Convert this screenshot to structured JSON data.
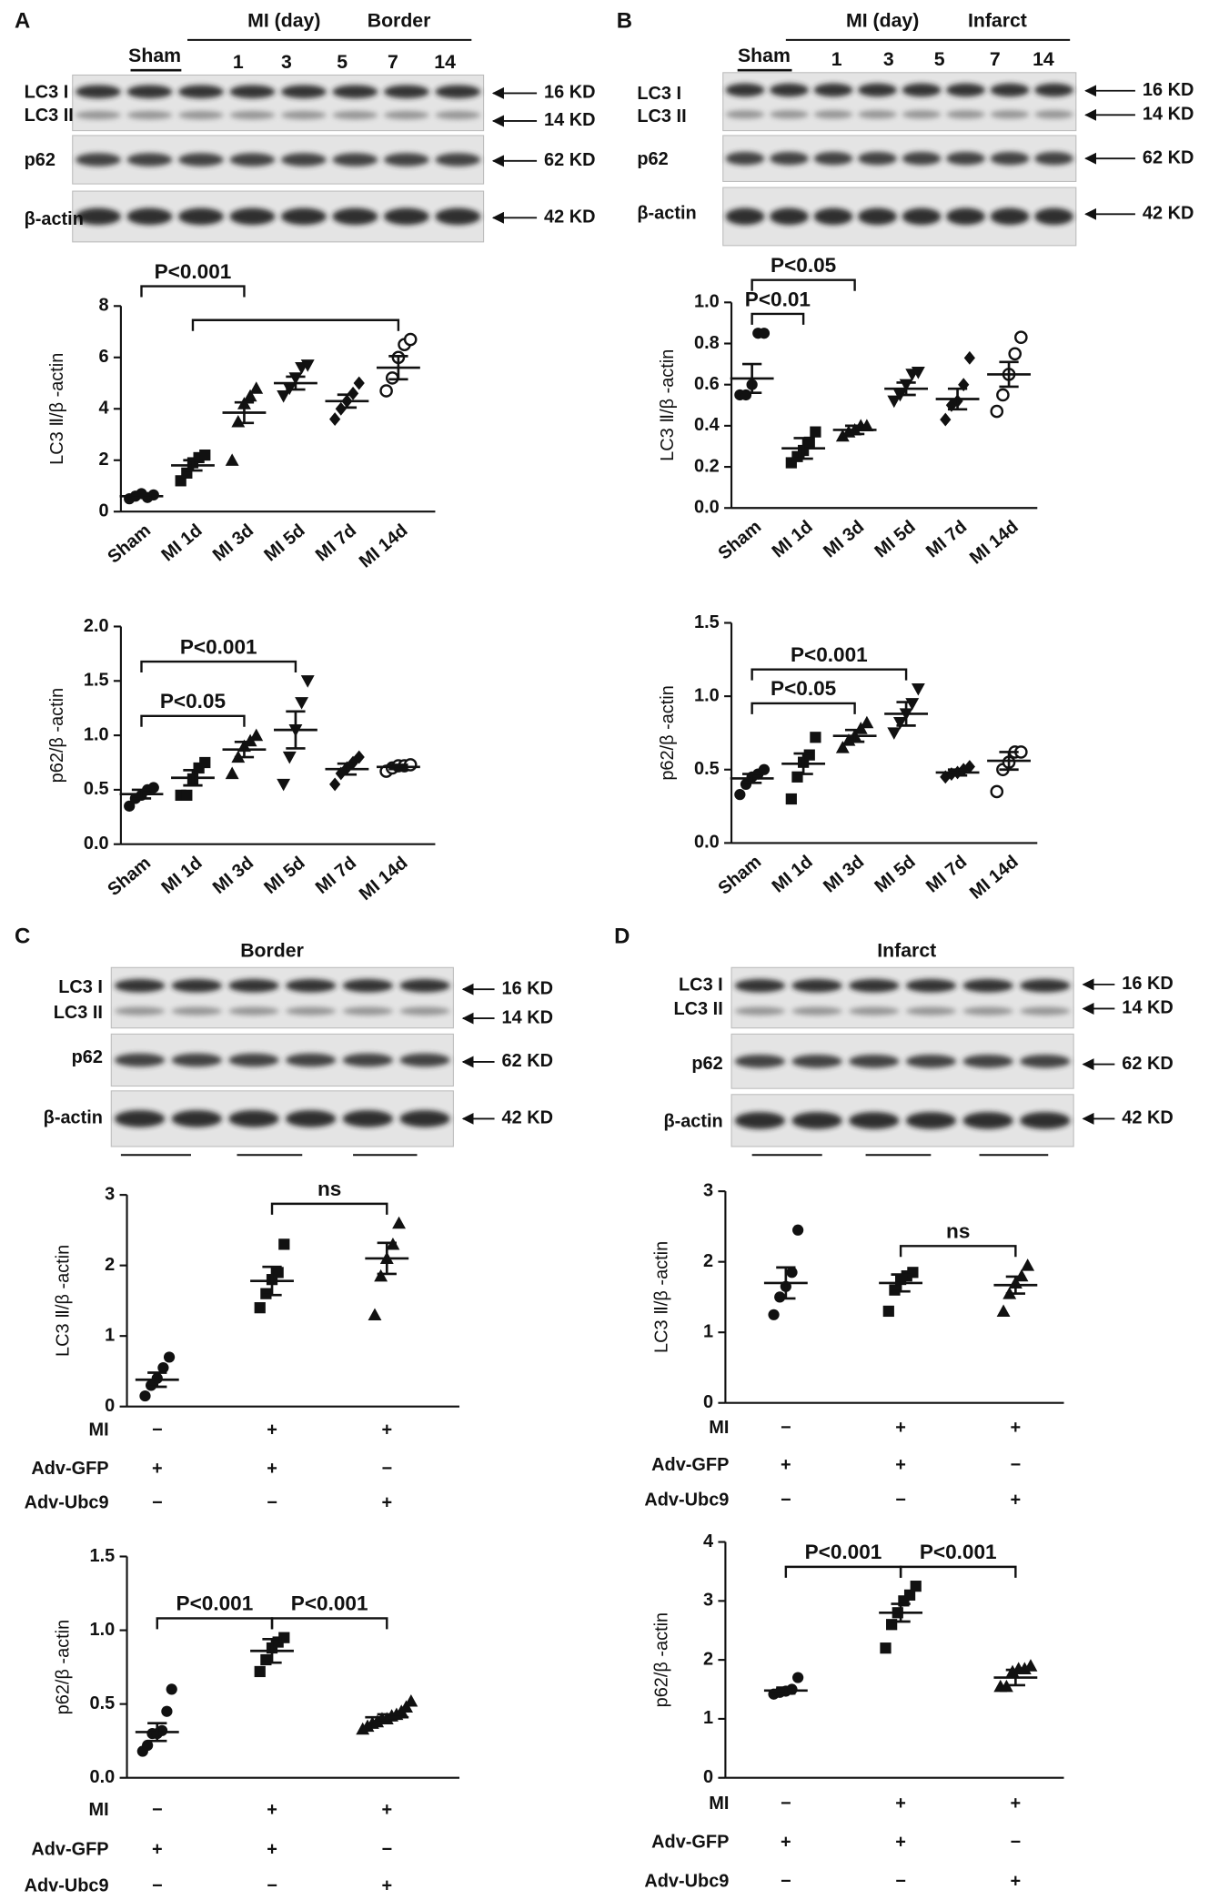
{
  "blots": [
    {
      "label": "A",
      "headers": [
        "MI (day)",
        "Border"
      ],
      "lanes": [
        "Sham",
        "1",
        "3",
        "5",
        "7",
        "14"
      ],
      "rows": [
        "LC3 I",
        "LC3 II",
        "p62",
        "β-actin"
      ],
      "sizes": [
        "16 KD",
        "14 KD",
        "62 KD",
        "42 KD"
      ]
    },
    {
      "label": "B",
      "headers": [
        "MI (day)",
        "Infarct"
      ],
      "lanes": [
        "Sham",
        "1",
        "3",
        "5",
        "7",
        "14"
      ],
      "rows": [
        "LC3 I",
        "LC3 II",
        "p62",
        "β-actin"
      ],
      "sizes": [
        "16 KD",
        "14 KD",
        "62 KD",
        "42 KD"
      ]
    },
    {
      "label": "C",
      "headers": [
        "Border"
      ],
      "lanes": [],
      "rows": [
        "LC3 I",
        "LC3 II",
        "p62",
        "β-actin"
      ],
      "sizes": [
        "16 KD",
        "14 KD",
        "62 KD",
        "42 KD"
      ]
    },
    {
      "label": "D",
      "headers": [
        "Infarct"
      ],
      "lanes": [],
      "rows": [
        "LC3 I",
        "LC3 II",
        "p62",
        "β-actin"
      ],
      "sizes": [
        "16 KD",
        "14 KD",
        "62 KD",
        "42 KD"
      ]
    }
  ],
  "chart_data": [
    {
      "type": "scatter",
      "ylabel": "LC3 Ⅱ/β -actin",
      "color": "#111111",
      "categories": [
        "Sham",
        "MI 1d",
        "MI 3d",
        "MI 5d",
        "MI 7d",
        "MI 14d"
      ],
      "markers": [
        "circle",
        "square",
        "triangle",
        "triangle-down",
        "diamond",
        "circle-open"
      ],
      "values": [
        [
          0.5,
          0.6,
          0.7,
          0.55,
          0.65
        ],
        [
          1.2,
          1.5,
          1.9,
          2.1,
          2.2
        ],
        [
          2.0,
          3.5,
          4.2,
          4.5,
          4.8
        ],
        [
          4.5,
          4.8,
          5.2,
          5.6,
          5.7
        ],
        [
          3.6,
          4.0,
          4.3,
          4.6,
          5.0
        ],
        [
          4.7,
          5.2,
          6.0,
          6.5,
          6.7
        ]
      ],
      "means": [
        0.6,
        1.8,
        3.85,
        5.0,
        4.3,
        5.6
      ],
      "sems": [
        0.05,
        0.2,
        0.4,
        0.25,
        0.25,
        0.45
      ],
      "ylim": [
        0,
        8
      ],
      "yticks": [
        0,
        2,
        4,
        6,
        8
      ],
      "annotations": [
        {
          "from": 1,
          "to": 5
        },
        {
          "from": 0,
          "to": 2,
          "label": "P<0.001"
        }
      ]
    },
    {
      "type": "scatter",
      "ylabel": "p62/β -actin",
      "color": "#111111",
      "categories": [
        "Sham",
        "MI 1d",
        "MI 3d",
        "MI 5d",
        "MI 7d",
        "MI 14d"
      ],
      "markers": [
        "circle",
        "square",
        "triangle",
        "triangle-down",
        "diamond",
        "circle-open"
      ],
      "values": [
        [
          0.35,
          0.42,
          0.45,
          0.5,
          0.52
        ],
        [
          0.45,
          0.45,
          0.6,
          0.7,
          0.75
        ],
        [
          0.65,
          0.8,
          0.9,
          0.95,
          1.0
        ],
        [
          0.55,
          0.8,
          1.05,
          1.3,
          1.5
        ],
        [
          0.55,
          0.65,
          0.7,
          0.75,
          0.8
        ],
        [
          0.67,
          0.7,
          0.72,
          0.72,
          0.73
        ]
      ],
      "means": [
        0.46,
        0.61,
        0.87,
        1.05,
        0.69,
        0.71
      ],
      "sems": [
        0.04,
        0.07,
        0.07,
        0.17,
        0.05,
        0.02
      ],
      "ylim": [
        0,
        2
      ],
      "yticks": [
        {
          "value": 0,
          "label": "0.0"
        },
        0.5,
        {
          "value": 1,
          "label": "1.0"
        },
        1.5,
        {
          "value": 2,
          "label": "2.0"
        }
      ],
      "annotations": [
        {
          "from": 0,
          "to": 2,
          "label": "P<0.05"
        },
        {
          "from": 0,
          "to": 3,
          "label": "P<0.001"
        }
      ]
    },
    {
      "type": "scatter",
      "ylabel": "LC3 Ⅱ/β -actin",
      "color": "#111111",
      "categories": [
        "Sham",
        "MI 1d",
        "MI 3d",
        "MI 5d",
        "MI 7d",
        "MI 14d"
      ],
      "markers": [
        "circle",
        "square",
        "triangle",
        "triangle-down",
        "diamond",
        "circle-open"
      ],
      "values": [
        [
          0.55,
          0.55,
          0.6,
          0.85,
          0.85
        ],
        [
          0.22,
          0.25,
          0.28,
          0.32,
          0.37
        ],
        [
          0.35,
          0.37,
          0.38,
          0.4,
          0.4
        ],
        [
          0.52,
          0.55,
          0.6,
          0.65,
          0.66
        ],
        [
          0.43,
          0.5,
          0.52,
          0.6,
          0.73
        ],
        [
          0.47,
          0.55,
          0.65,
          0.75,
          0.83
        ]
      ],
      "means": [
        0.63,
        0.29,
        0.38,
        0.58,
        0.53,
        0.65
      ],
      "sems": [
        0.07,
        0.05,
        0.02,
        0.03,
        0.05,
        0.06
      ],
      "ylim": [
        0,
        1
      ],
      "yticks": [
        {
          "value": 0,
          "label": "0.0"
        },
        0.2,
        0.4,
        0.6,
        0.8,
        {
          "value": 1,
          "label": "1.0"
        }
      ],
      "annotations": [
        {
          "from": 0,
          "to": 1,
          "label": "P<0.01"
        },
        {
          "from": 0,
          "to": 2,
          "label": "P<0.05"
        }
      ]
    },
    {
      "type": "scatter",
      "ylabel": "p62/β -actin",
      "color": "#111111",
      "categories": [
        "Sham",
        "MI 1d",
        "MI 3d",
        "MI 5d",
        "MI 7d",
        "MI 14d"
      ],
      "markers": [
        "circle",
        "square",
        "triangle",
        "triangle-down",
        "diamond",
        "circle-open"
      ],
      "values": [
        [
          0.33,
          0.4,
          0.45,
          0.47,
          0.5
        ],
        [
          0.3,
          0.45,
          0.55,
          0.6,
          0.72
        ],
        [
          0.65,
          0.7,
          0.73,
          0.78,
          0.82
        ],
        [
          0.75,
          0.82,
          0.88,
          0.95,
          1.05
        ],
        [
          0.45,
          0.47,
          0.48,
          0.5,
          0.52
        ],
        [
          0.35,
          0.5,
          0.55,
          0.62,
          0.62
        ]
      ],
      "means": [
        0.44,
        0.54,
        0.73,
        0.88,
        0.48,
        0.56
      ],
      "sems": [
        0.03,
        0.07,
        0.04,
        0.08,
        0.02,
        0.06
      ],
      "ylim": [
        0,
        1.5
      ],
      "yticks": [
        {
          "value": 0,
          "label": "0.0"
        },
        0.5,
        {
          "value": 1,
          "label": "1.0"
        },
        1.5
      ],
      "annotations": [
        {
          "from": 0,
          "to": 2,
          "label": "P<0.05"
        },
        {
          "from": 0,
          "to": 3,
          "label": "P<0.001"
        }
      ]
    },
    {
      "type": "scatter",
      "ylabel": "LC3 Ⅱ/β -actin",
      "color": "#111111",
      "categories": [
        null,
        null,
        null
      ],
      "markers": [
        "circle",
        "square",
        "triangle"
      ],
      "values": [
        [
          0.15,
          0.3,
          0.4,
          0.55,
          0.7
        ],
        [
          1.4,
          1.6,
          1.8,
          1.9,
          2.3
        ],
        [
          1.3,
          1.85,
          2.1,
          2.3,
          2.6
        ]
      ],
      "means": [
        0.38,
        1.78,
        2.1
      ],
      "sems": [
        0.1,
        0.2,
        0.22
      ],
      "ylim": [
        0,
        3
      ],
      "yticks": [
        0,
        1,
        2,
        3
      ],
      "annotations": [
        {
          "from": 1,
          "to": 2,
          "label": "ns"
        }
      ],
      "conditions": [
        {
          "label": "MI",
          "values": [
            "−",
            "+",
            "+"
          ]
        },
        {
          "label": "Adv-GFP",
          "values": [
            "+",
            "+",
            "−"
          ]
        },
        {
          "label": "Adv-Ubc9",
          "values": [
            "−",
            "−",
            "+"
          ]
        }
      ]
    },
    {
      "type": "scatter",
      "ylabel": "p62/β -actin",
      "color": "#111111",
      "categories": [
        null,
        null,
        null
      ],
      "markers": [
        "circle",
        "square",
        "triangle"
      ],
      "values": [
        [
          0.18,
          0.22,
          0.3,
          0.3,
          0.32,
          0.45,
          0.6
        ],
        [
          0.72,
          0.8,
          0.88,
          0.92,
          0.95
        ],
        [
          0.33,
          0.35,
          0.37,
          0.38,
          0.4,
          0.4,
          0.42,
          0.43,
          0.45,
          0.48,
          0.52
        ]
      ],
      "means": [
        0.31,
        0.86,
        0.41
      ],
      "sems": [
        0.06,
        0.08,
        0.02
      ],
      "ylim": [
        0,
        1.5
      ],
      "yticks": [
        {
          "value": 0,
          "label": "0.0"
        },
        0.5,
        {
          "value": 1,
          "label": "1.0"
        },
        1.5
      ],
      "annotations": [
        {
          "from": 0,
          "to": 1,
          "label": "P<0.001"
        },
        {
          "from": 1,
          "to": 2,
          "label": "P<0.001"
        }
      ],
      "conditions": [
        {
          "label": "MI",
          "values": [
            "−",
            "+",
            "+"
          ]
        },
        {
          "label": "Adv-GFP",
          "values": [
            "+",
            "+",
            "−"
          ]
        },
        {
          "label": "Adv-Ubc9",
          "values": [
            "−",
            "−",
            "+"
          ]
        }
      ]
    },
    {
      "type": "scatter",
      "ylabel": "LC3 Ⅱ/β -actin",
      "color": "#111111",
      "categories": [
        null,
        null,
        null
      ],
      "markers": [
        "circle",
        "square",
        "triangle"
      ],
      "values": [
        [
          1.25,
          1.5,
          1.65,
          1.85,
          2.45
        ],
        [
          1.3,
          1.6,
          1.75,
          1.8,
          1.85
        ],
        [
          1.3,
          1.55,
          1.7,
          1.8,
          1.95
        ]
      ],
      "means": [
        1.7,
        1.7,
        1.67
      ],
      "sems": [
        0.22,
        0.12,
        0.12
      ],
      "ylim": [
        0,
        3
      ],
      "yticks": [
        0,
        1,
        2,
        3
      ],
      "annotations": [
        {
          "from": 1,
          "to": 2,
          "label": "ns"
        }
      ],
      "conditions": [
        {
          "label": "MI",
          "values": [
            "−",
            "+",
            "+"
          ]
        },
        {
          "label": "Adv-GFP",
          "values": [
            "+",
            "+",
            "−"
          ]
        },
        {
          "label": "Adv-Ubc9",
          "values": [
            "−",
            "−",
            "+"
          ]
        }
      ]
    },
    {
      "type": "scatter",
      "ylabel": "p62/β -actin",
      "color": "#111111",
      "categories": [
        null,
        null,
        null
      ],
      "markers": [
        "circle",
        "square",
        "triangle"
      ],
      "values": [
        [
          1.42,
          1.45,
          1.47,
          1.5,
          1.7
        ],
        [
          2.2,
          2.6,
          2.8,
          3.0,
          3.1,
          3.25
        ],
        [
          1.55,
          1.55,
          1.8,
          1.85,
          1.85,
          1.9
        ]
      ],
      "means": [
        1.48,
        2.8,
        1.7
      ],
      "sems": [
        0.05,
        0.15,
        0.13
      ],
      "ylim": [
        0,
        4
      ],
      "yticks": [
        0,
        1,
        2,
        3,
        4
      ],
      "annotations": [
        {
          "from": 0,
          "to": 1,
          "label": "P<0.001"
        },
        {
          "from": 1,
          "to": 2,
          "label": "P<0.001"
        }
      ],
      "conditions": [
        {
          "label": "MI",
          "values": [
            "−",
            "+",
            "+"
          ]
        },
        {
          "label": "Adv-GFP",
          "values": [
            "+",
            "+",
            "−"
          ]
        },
        {
          "label": "Adv-Ubc9",
          "values": [
            "−",
            "−",
            "+"
          ]
        }
      ]
    }
  ]
}
